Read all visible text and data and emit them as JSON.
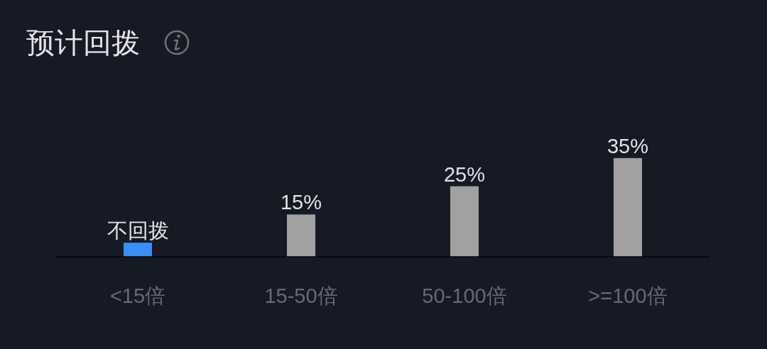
{
  "chart_data": {
    "type": "bar",
    "title": "预计回拨",
    "categories": [
      "<15倍",
      "15-50倍",
      "50-100倍",
      ">=100倍"
    ],
    "values": [
      5,
      15,
      25,
      35
    ],
    "colors": [
      "#3a8ef6",
      "#a2a1a1",
      "#a2a1a1",
      "#a2a1a1"
    ],
    "value_labels": [
      "不回拨",
      "15%",
      "25%",
      "35%"
    ]
  }
}
